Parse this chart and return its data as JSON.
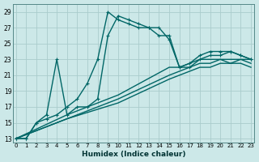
{
  "xlabel": "Humidex (Indice chaleur)",
  "ylabel": "",
  "background_color": "#cce8e8",
  "grid_color": "#aacccc",
  "line_color": "#006666",
  "xlim": [
    -0.3,
    23.3
  ],
  "ylim": [
    12.5,
    30.0
  ],
  "xticks": [
    0,
    1,
    2,
    3,
    4,
    5,
    6,
    7,
    8,
    9,
    10,
    11,
    12,
    13,
    14,
    15,
    16,
    17,
    18,
    19,
    20,
    21,
    22,
    23
  ],
  "yticks": [
    13,
    15,
    17,
    19,
    21,
    23,
    25,
    27,
    29
  ],
  "series": [
    {
      "x": [
        0,
        1,
        2,
        3,
        4,
        5,
        6,
        7,
        8,
        9,
        10,
        11,
        12,
        13,
        14,
        15,
        16,
        17,
        18,
        19,
        20,
        21,
        22,
        23
      ],
      "y": [
        13,
        13,
        15,
        15.5,
        16,
        17,
        18,
        20,
        23,
        29,
        28,
        27.5,
        27,
        27,
        27,
        25.5,
        22,
        22.5,
        23.5,
        24,
        24,
        24,
        23.5,
        23
      ],
      "marker": "+",
      "markersize": 3.5,
      "linewidth": 1.0,
      "linestyle": "-"
    },
    {
      "x": [
        0,
        1,
        2,
        3,
        4,
        5,
        6,
        7,
        8,
        9,
        10,
        11,
        12,
        13,
        14,
        15,
        16,
        17,
        18,
        19,
        20,
        21,
        22,
        23
      ],
      "y": [
        13,
        13,
        15,
        16,
        23,
        16,
        17,
        17,
        18,
        26,
        28.5,
        28,
        27.5,
        27,
        26,
        26,
        22,
        22,
        23,
        23.5,
        23.5,
        24,
        23.5,
        23
      ],
      "marker": "+",
      "markersize": 3.5,
      "linewidth": 1.0,
      "linestyle": "-"
    },
    {
      "x": [
        0,
        5,
        10,
        15,
        16,
        17,
        18,
        19,
        20,
        21,
        22,
        23
      ],
      "y": [
        13,
        15.5,
        17.5,
        20.5,
        21,
        21.5,
        22,
        22,
        22.5,
        22.5,
        23,
        23
      ],
      "marker": null,
      "markersize": 0,
      "linewidth": 1.0,
      "linestyle": "-"
    },
    {
      "x": [
        0,
        5,
        10,
        15,
        16,
        17,
        18,
        19,
        20,
        21,
        22,
        23
      ],
      "y": [
        13,
        15.5,
        18,
        21,
        21.5,
        22,
        22.5,
        22.5,
        23,
        23,
        23,
        22.5
      ],
      "marker": null,
      "markersize": 0,
      "linewidth": 1.0,
      "linestyle": "-"
    },
    {
      "x": [
        0,
        5,
        10,
        15,
        16,
        17,
        18,
        19,
        20,
        21,
        22,
        23
      ],
      "y": [
        13,
        16,
        18.5,
        22,
        22,
        22.5,
        23,
        23,
        23,
        22.5,
        22.5,
        22
      ],
      "marker": null,
      "markersize": 0,
      "linewidth": 1.0,
      "linestyle": "-"
    }
  ]
}
